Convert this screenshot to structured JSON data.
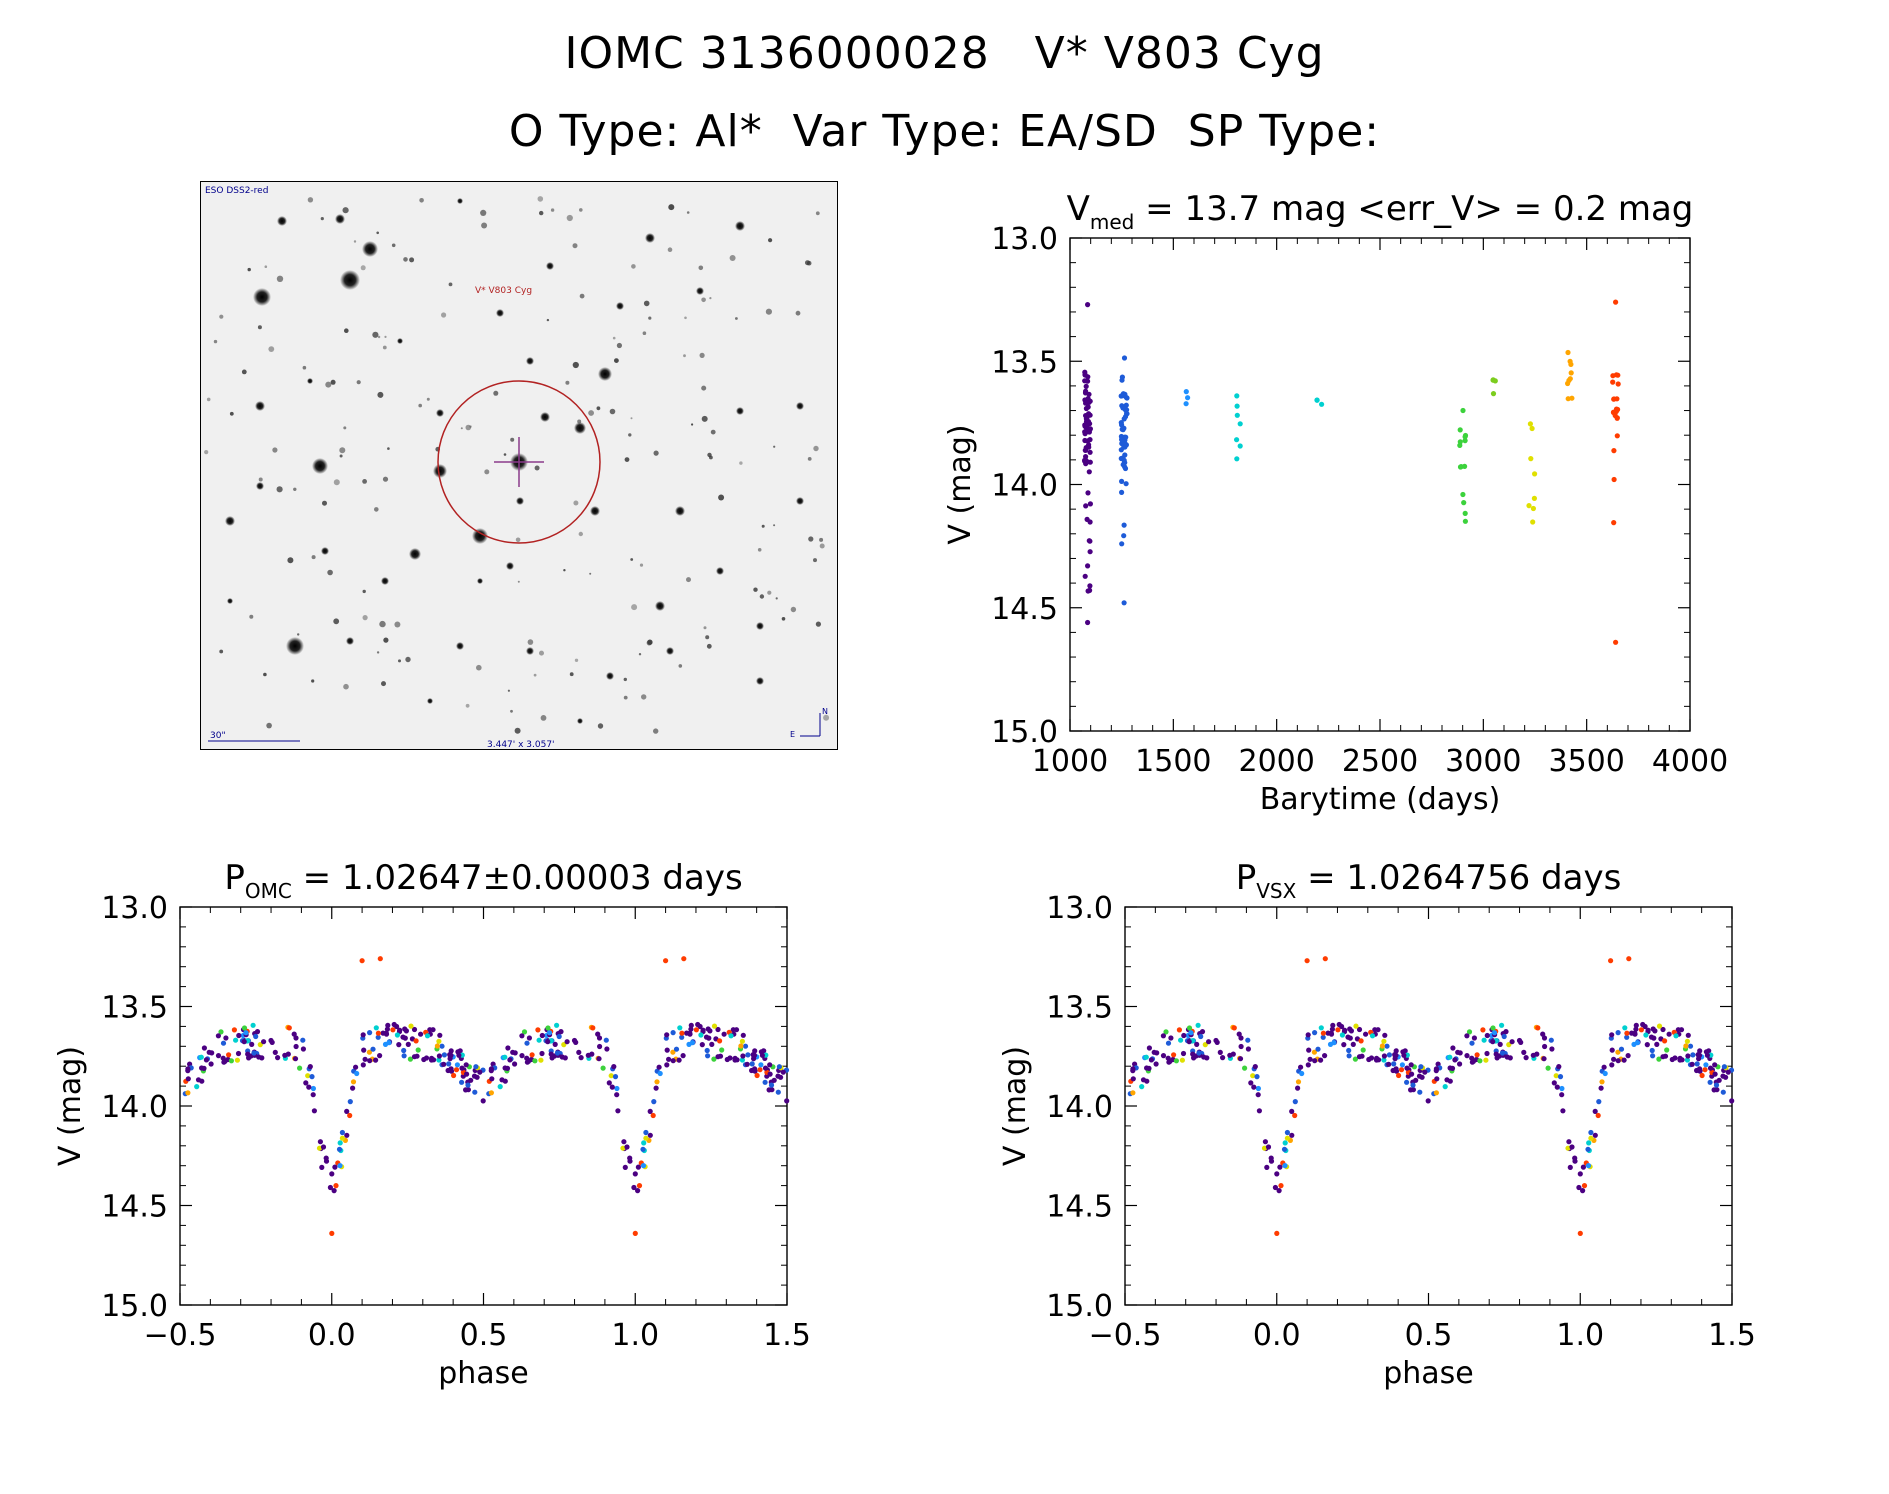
{
  "header": {
    "title": "IOMC 3136000028   V* V803 Cyg",
    "subtitle": "O Type: Al*  Var Type: EA/SD  SP Type:"
  },
  "finder": {
    "survey_label": "ESO DSS2-red",
    "object_label": "V* V803 Cyg",
    "scale_label": "30\"",
    "fov_label": "3.447' x 3.057'",
    "north_label": "N",
    "east_label": "E",
    "colors": {
      "ring": "#b22222",
      "cross": "#8b3a8b",
      "annot": "#00008b",
      "label": "#b22222"
    }
  },
  "colors": {
    "segments": [
      "#4b0082",
      "#1e5bd8",
      "#1e90ff",
      "#00d0d0",
      "#3cd23c",
      "#7ccd1e",
      "#e0e000",
      "#ffa500",
      "#ff3c00"
    ],
    "black_marker": "#000000"
  },
  "chart_data": [
    {
      "id": "lightcurve",
      "type": "scatter",
      "title_main": "V",
      "title_sub": "med",
      "title_rest": " = 13.7 mag <err_V> = 0.2 mag",
      "xlabel": "Barytime (days)",
      "ylabel": "V (mag)",
      "xlim": [
        1000,
        4000
      ],
      "ylim": [
        15.0,
        13.0
      ],
      "xticks": [
        1000,
        1500,
        2000,
        2500,
        3000,
        3500,
        4000
      ],
      "xtick_labels": [
        "1000",
        "1500",
        "2000",
        "2500",
        "3000",
        "3500",
        "4000"
      ],
      "yticks": [
        13.0,
        13.5,
        14.0,
        14.5,
        15.0
      ],
      "ytick_labels": [
        "13.0",
        "13.5",
        "14.0",
        "14.5",
        "15.0"
      ],
      "segments": [
        {
          "x": 1085,
          "ymin": 13.53,
          "ymax": 14.47,
          "n": 70,
          "extra": [
            13.27,
            14.56
          ],
          "dense": [
            13.55,
            13.95
          ]
        },
        {
          "x": 1262,
          "ymin": 13.48,
          "ymax": 14.29,
          "n": 55,
          "extra": [
            14.48
          ],
          "dense": [
            13.55,
            13.95
          ]
        },
        {
          "x": 1560,
          "ymin": 13.62,
          "ymax": 13.68,
          "n": 3,
          "extra": []
        },
        {
          "x": 1810,
          "ymin": 13.61,
          "ymax": 13.97,
          "n": 7,
          "extra": []
        },
        {
          "x": 2205,
          "ymin": 13.64,
          "ymax": 13.68,
          "n": 3,
          "extra": []
        },
        {
          "x": 2900,
          "ymin": 13.66,
          "ymax": 14.17,
          "n": 14,
          "extra": []
        },
        {
          "x": 3060,
          "ymin": 13.57,
          "ymax": 13.65,
          "n": 4,
          "extra": []
        },
        {
          "x": 3235,
          "ymin": 13.75,
          "ymax": 14.25,
          "n": 8,
          "extra": []
        },
        {
          "x": 3420,
          "ymin": 13.44,
          "ymax": 13.67,
          "n": 9,
          "extra": []
        },
        {
          "x": 3640,
          "ymin": 13.55,
          "ymax": 14.19,
          "n": 20,
          "extra": [
            13.26,
            14.64
          ],
          "dense": [
            13.55,
            13.75
          ]
        }
      ]
    },
    {
      "id": "phase_omc",
      "type": "scatter",
      "title_main": "P",
      "title_sub": "OMC",
      "title_rest": " = 1.02647±0.00003 days",
      "xlabel": "phase",
      "ylabel": "V (mag)",
      "xlim": [
        -0.5,
        1.5
      ],
      "ylim": [
        15.0,
        13.0
      ],
      "xticks": [
        -0.5,
        0.0,
        0.5,
        1.0,
        1.5
      ],
      "xtick_labels": [
        "−0.5",
        "0.0",
        "0.5",
        "1.0",
        "1.5"
      ],
      "yticks": [
        13.0,
        13.5,
        14.0,
        14.5,
        15.0
      ],
      "ytick_labels": [
        "13.0",
        "13.5",
        "14.0",
        "14.5",
        "15.0"
      ],
      "model": {
        "max_mag": 13.68,
        "primary_depth": 0.72,
        "primary_width": 0.045,
        "secondary_depth": 0.22,
        "secondary_width": 0.07,
        "scatter": 0.09
      },
      "outliers": [
        {
          "phase": 0.1,
          "mag": 13.27
        },
        {
          "phase": 0.16,
          "mag": 13.26
        },
        {
          "phase": 0.0,
          "mag": 14.64
        }
      ]
    },
    {
      "id": "phase_vsx",
      "type": "scatter",
      "title_main": "P",
      "title_sub": "VSX",
      "title_rest": " = 1.0264756 days",
      "xlabel": "phase",
      "ylabel": "V (mag)",
      "xlim": [
        -0.5,
        1.5
      ],
      "ylim": [
        15.0,
        13.0
      ],
      "xticks": [
        -0.5,
        0.0,
        0.5,
        1.0,
        1.5
      ],
      "xtick_labels": [
        "−0.5",
        "0.0",
        "0.5",
        "1.0",
        "1.5"
      ],
      "yticks": [
        13.0,
        13.5,
        14.0,
        14.5,
        15.0
      ],
      "ytick_labels": [
        "13.0",
        "13.5",
        "14.0",
        "14.5",
        "15.0"
      ],
      "model": {
        "max_mag": 13.68,
        "primary_depth": 0.72,
        "primary_width": 0.045,
        "secondary_depth": 0.22,
        "secondary_width": 0.07,
        "scatter": 0.09
      },
      "outliers": [
        {
          "phase": 0.1,
          "mag": 13.27
        },
        {
          "phase": 0.16,
          "mag": 13.26
        },
        {
          "phase": 0.0,
          "mag": 14.64
        }
      ]
    }
  ]
}
